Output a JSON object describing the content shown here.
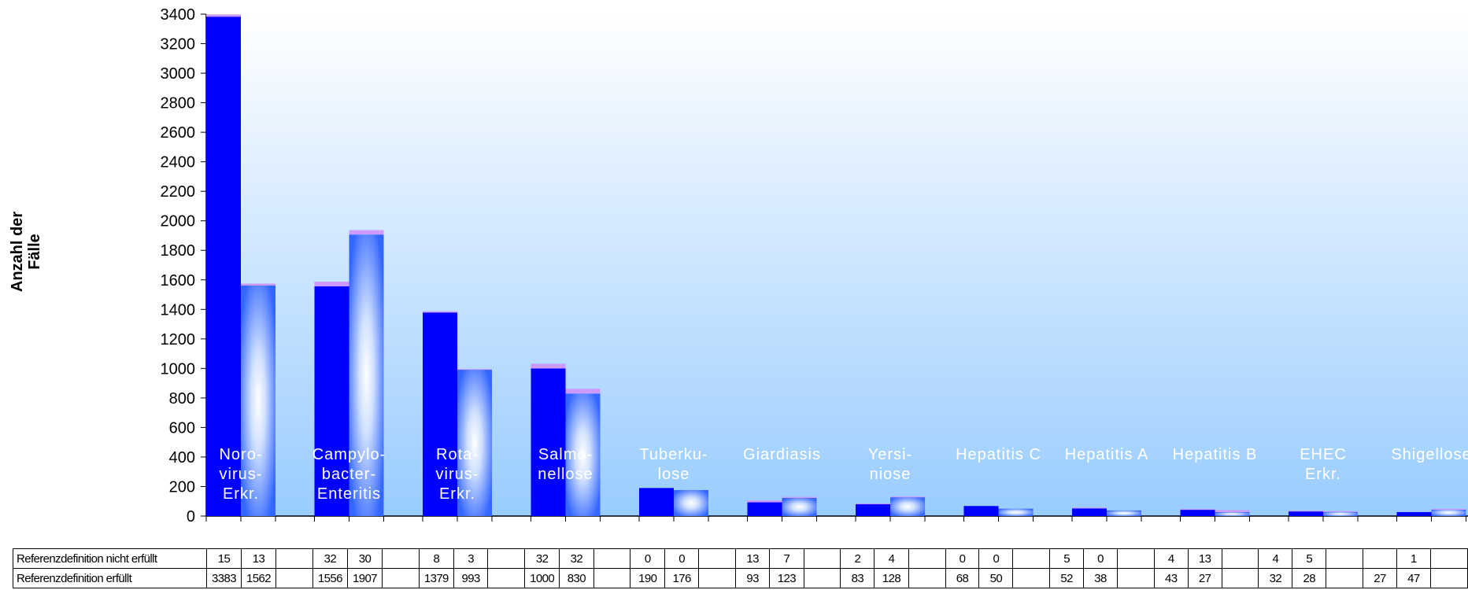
{
  "chart_data": {
    "type": "bar",
    "ylabel": "Anzahl der\nFälle",
    "ylim": [
      0,
      3400
    ],
    "yticks": [
      0,
      200,
      400,
      600,
      800,
      1000,
      1200,
      1400,
      1600,
      1800,
      2000,
      2200,
      2400,
      2600,
      2800,
      3000,
      3200,
      3400
    ],
    "categories": [
      "Noro-\nvirus-\nErkr.",
      "Campylo-\nbacter-\nEnteritis",
      "Rota-\nvirus-\nErkr.",
      "Salmo-\nnellose",
      "Tuberku-\nlose",
      "Giardiasis",
      "Yersi-\nniose",
      "Hepatitis C",
      "Hepatitis A",
      "Hepatitis B",
      "EHEC\nErkr.",
      "Shigellose"
    ],
    "series": [
      {
        "name": "Referenzdefinition nicht erfüllt",
        "values": [
          [
            15,
            13
          ],
          [
            32,
            30
          ],
          [
            8,
            3
          ],
          [
            32,
            32
          ],
          [
            0,
            0
          ],
          [
            13,
            7
          ],
          [
            2,
            4
          ],
          [
            0,
            0
          ],
          [
            5,
            0
          ],
          [
            4,
            13
          ],
          [
            4,
            5
          ],
          [
            null,
            1
          ]
        ]
      },
      {
        "name": "Referenzdefinition erfüllt",
        "values": [
          [
            3383,
            1562
          ],
          [
            1556,
            1907
          ],
          [
            1379,
            993
          ],
          [
            1000,
            830
          ],
          [
            190,
            176
          ],
          [
            93,
            123
          ],
          [
            83,
            128
          ],
          [
            68,
            50
          ],
          [
            52,
            38
          ],
          [
            43,
            27
          ],
          [
            32,
            28
          ],
          [
            27,
            47
          ]
        ]
      }
    ],
    "colors": {
      "first_bar": "#0000ff",
      "second_bar_edge": "#3366ff",
      "second_bar_center": "#ffffff",
      "stack_top": "#cc99ff",
      "bg_top": "#ffffff",
      "bg_bottom": "#99ccff"
    }
  }
}
